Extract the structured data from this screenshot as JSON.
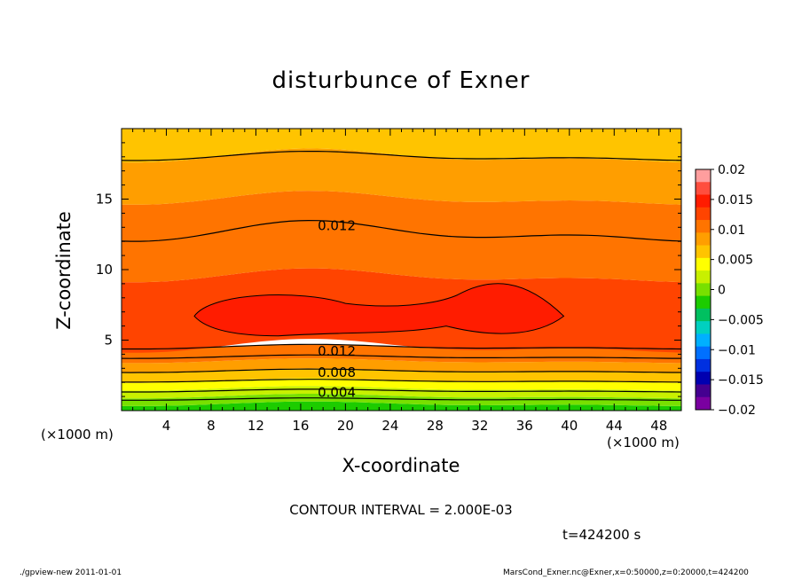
{
  "chart_data": {
    "type": "heatmap",
    "subtype": "filled-contour",
    "title": "disturbunce of Exner",
    "xlabel": "X-coordinate",
    "ylabel": "Z-coordinate",
    "x_unit_label": "(×1000 m)",
    "x_ticks": [
      "4",
      "8",
      "12",
      "16",
      "20",
      "24",
      "28",
      "32",
      "36",
      "40",
      "44",
      "48"
    ],
    "y_ticks": [
      "5",
      "10",
      "15"
    ],
    "xlim": [
      0,
      50
    ],
    "ylim": [
      0,
      20
    ],
    "contour_interval_text": "CONTOUR INTERVAL = 2.000E-03",
    "contour_line_labels": [
      {
        "text": "0.012",
        "x": 17,
        "z": 13.1
      },
      {
        "text": "0.012",
        "x": 17,
        "z": 4.2
      },
      {
        "text": "0.008",
        "x": 17,
        "z": 2.7
      },
      {
        "text": "0.004",
        "x": 17,
        "z": 1.3
      }
    ],
    "field_summary": {
      "max_value_approx": 0.0145,
      "max_locations_x": [
        12,
        34
      ],
      "max_height_z": 6.5,
      "min_value_approx": 0.001,
      "min_height_z": 0
    },
    "colorbar": {
      "levels": [
        "0.02",
        "0.015",
        "0.01",
        "0.005",
        "0",
        "−0.005",
        "−0.01",
        "−0.015",
        "−0.02"
      ],
      "colors": [
        "#ff9e9e",
        "#ff4e3e",
        "#ff1c00",
        "#ff4400",
        "#ff7400",
        "#ff9e00",
        "#ffc400",
        "#ffff00",
        "#c8f000",
        "#78e000",
        "#1ccc00",
        "#00c060",
        "#00d0c0",
        "#00b0ff",
        "#0070ff",
        "#0030e0",
        "#0000b0",
        "#440090",
        "#7a00a0"
      ]
    }
  },
  "time_label": "t=424200 s",
  "footer": {
    "left": "./gpview-new   2011-01-01",
    "right": "MarsCond_Exner.nc@Exner,x=0:50000,z=0:20000,t=424200"
  }
}
